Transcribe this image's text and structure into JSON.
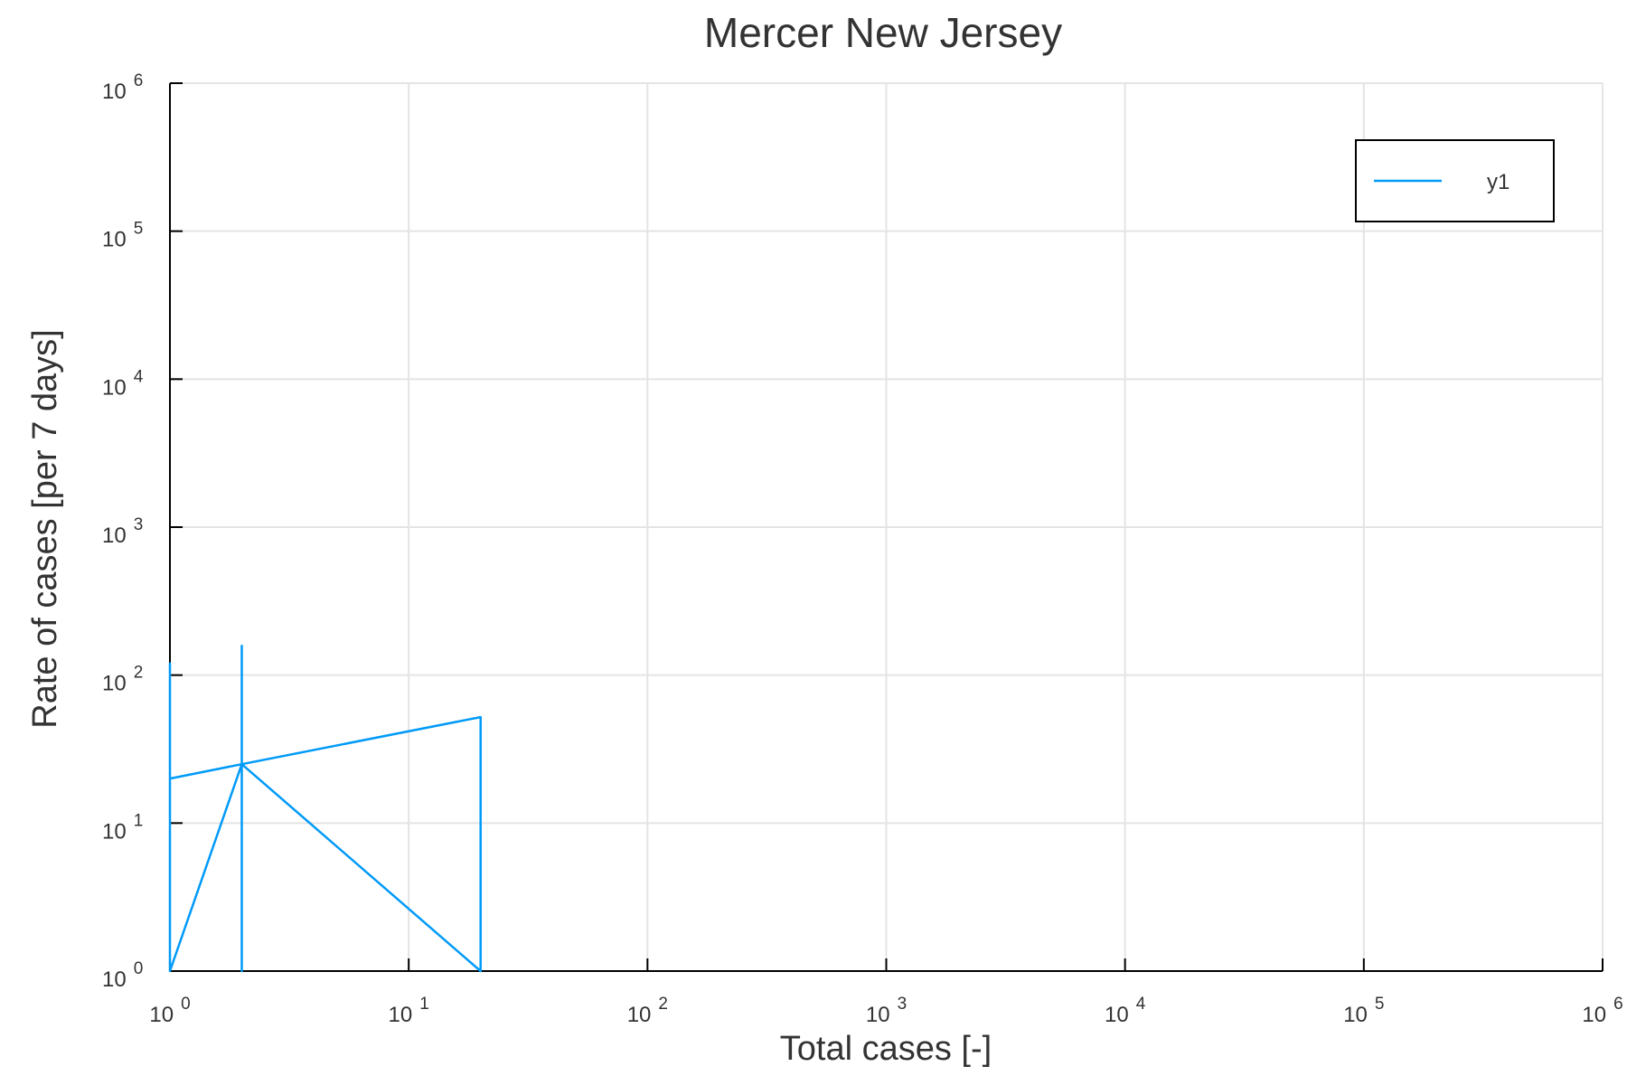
{
  "chart_data": {
    "type": "line",
    "title": "Mercer New Jersey",
    "xlabel": "Total cases [-]",
    "ylabel": "Rate of cases [per 7 days]",
    "xscale": "log",
    "yscale": "log",
    "xlim": [
      1,
      1000000
    ],
    "ylim": [
      1,
      1000000
    ],
    "grid": true,
    "legend_position": "top-right",
    "x_ticks": [
      {
        "base": "10",
        "exp": "0",
        "value": 1
      },
      {
        "base": "10",
        "exp": "1",
        "value": 10
      },
      {
        "base": "10",
        "exp": "2",
        "value": 100
      },
      {
        "base": "10",
        "exp": "3",
        "value": 1000
      },
      {
        "base": "10",
        "exp": "4",
        "value": 10000
      },
      {
        "base": "10",
        "exp": "5",
        "value": 100000
      },
      {
        "base": "10",
        "exp": "6",
        "value": 1000000
      }
    ],
    "y_ticks": [
      {
        "base": "10",
        "exp": "0",
        "value": 1
      },
      {
        "base": "10",
        "exp": "1",
        "value": 10
      },
      {
        "base": "10",
        "exp": "2",
        "value": 100
      },
      {
        "base": "10",
        "exp": "3",
        "value": 1000
      },
      {
        "base": "10",
        "exp": "4",
        "value": 10000
      },
      {
        "base": "10",
        "exp": "5",
        "value": 100000
      },
      {
        "base": "10",
        "exp": "6",
        "value": 1000000
      }
    ],
    "series": [
      {
        "name": "y1",
        "color": "#009af9",
        "x": [
          1,
          1,
          1,
          1,
          2,
          2,
          2,
          2,
          2,
          20,
          20,
          2,
          1,
          1,
          2,
          2
        ],
        "y": [
          1,
          120,
          1,
          1,
          25,
          1,
          80,
          1,
          25,
          52,
          1,
          25,
          20,
          1,
          25,
          160
        ]
      }
    ]
  }
}
